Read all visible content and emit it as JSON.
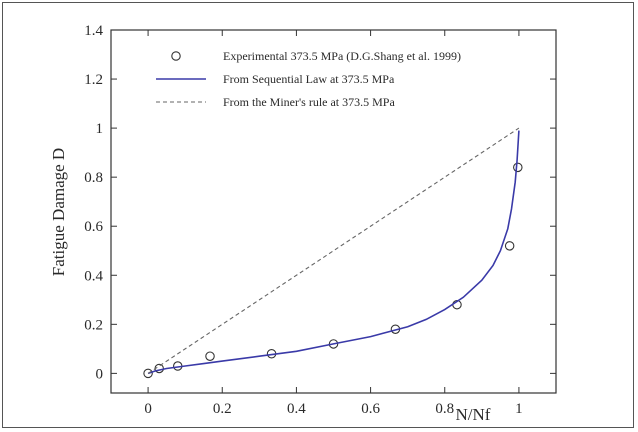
{
  "chart_data": {
    "type": "line",
    "xlabel": "N/Nf",
    "ylabel": "Fatigue Damage D",
    "xlim": [
      -0.1,
      1.1
    ],
    "ylim": [
      -0.08,
      1.4
    ],
    "x_ticks": [
      0,
      0.2,
      0.4,
      0.6,
      0.8,
      1
    ],
    "x_tick_labels": [
      "0",
      "0.2",
      "0.4",
      "0.6",
      "0.8",
      "1"
    ],
    "y_ticks": [
      0,
      0.2,
      0.4,
      0.6,
      0.8,
      1,
      1.2,
      1.4
    ],
    "y_tick_labels": [
      "0",
      "0.2",
      "0.4",
      "0.6",
      "0.8",
      "1",
      "1.2",
      "1.4"
    ],
    "grid": false,
    "legend_position": "top-right",
    "series": [
      {
        "name": "Experimental 373.5 MPa (D.G.Shang et al. 1999)",
        "style": "scatter",
        "marker": "open-circle",
        "color": "#333333",
        "x": [
          0,
          0.03,
          0.08,
          0.167,
          0.333,
          0.5,
          0.667,
          0.833,
          0.975,
          0.997
        ],
        "y": [
          0,
          0.02,
          0.03,
          0.07,
          0.08,
          0.12,
          0.18,
          0.28,
          0.52,
          0.84
        ]
      },
      {
        "name": "From Sequential Law at 373.5 MPa",
        "style": "solid",
        "color": "#3a3aa8",
        "x": [
          0,
          0.02,
          0.05,
          0.1,
          0.15,
          0.2,
          0.3,
          0.4,
          0.5,
          0.6,
          0.7,
          0.75,
          0.8,
          0.85,
          0.9,
          0.93,
          0.95,
          0.97,
          0.98,
          0.99,
          0.995,
          1.0
        ],
        "y": [
          0,
          0.01,
          0.02,
          0.03,
          0.04,
          0.05,
          0.07,
          0.09,
          0.12,
          0.15,
          0.19,
          0.22,
          0.26,
          0.31,
          0.38,
          0.44,
          0.5,
          0.59,
          0.67,
          0.78,
          0.87,
          0.99
        ]
      },
      {
        "name": "From the Miner's rule at 373.5 MPa",
        "style": "dashed",
        "color": "#666666",
        "x": [
          0,
          1
        ],
        "y": [
          0,
          1
        ]
      }
    ]
  }
}
